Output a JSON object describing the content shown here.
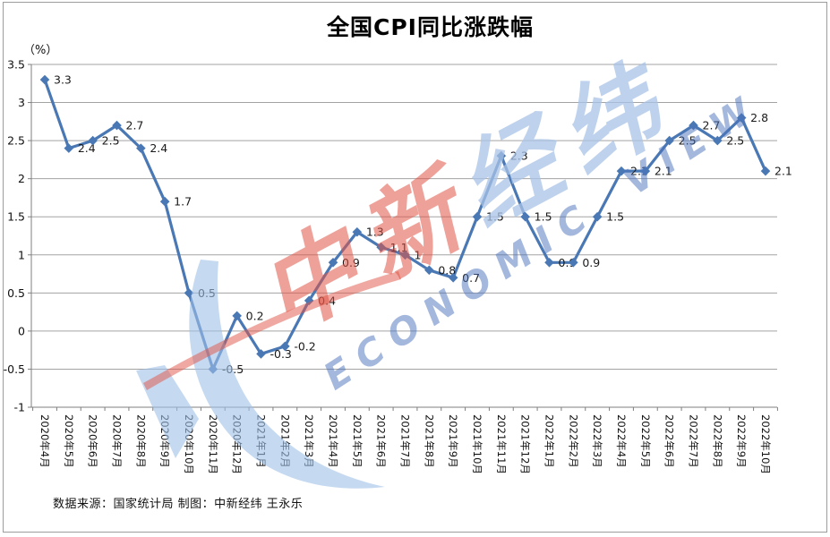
{
  "title": "全国CPI同比涨跌幅",
  "unit_label": "（%）",
  "source": "数据来源：国家统计局 制图：中新经纬 王永乐",
  "watermark": {
    "zh_red": "中新",
    "zh_blue": "经纬",
    "en": "ECONOMIC VIEW"
  },
  "colors": {
    "series": "#4A78B4",
    "gridline": "#A3A3A3",
    "axis": "#7F7F7F",
    "label": "#1A1A1A",
    "wm_red": "#E0544A",
    "wm_blue": "#A8C3E7"
  },
  "chart_data": {
    "type": "line",
    "title": "全国CPI同比涨跌幅",
    "ylabel": "（%）",
    "xlabel": "",
    "ylim": [
      -1,
      3.5
    ],
    "ytick_step": 0.5,
    "grid": true,
    "legend": "none",
    "marker": "diamond",
    "categories": [
      "2020年4月",
      "2020年5月",
      "2020年6月",
      "2020年7月",
      "2020年8月",
      "2020年9月",
      "2020年10月",
      "2020年11月",
      "2020年12月",
      "2021年1月",
      "2021年2月",
      "2021年3月",
      "2021年4月",
      "2021年5月",
      "2021年6月",
      "2021年7月",
      "2021年8月",
      "2021年9月",
      "2021年10月",
      "2021年11月",
      "2021年12月",
      "2022年1月",
      "2022年2月",
      "2022年3月",
      "2022年4月",
      "2022年5月",
      "2022年6月",
      "2022年7月",
      "2022年8月",
      "2022年9月",
      "2022年10月"
    ],
    "values": [
      3.3,
      2.4,
      2.5,
      2.7,
      2.4,
      1.7,
      0.5,
      -0.5,
      0.2,
      -0.3,
      -0.2,
      0.4,
      0.9,
      1.3,
      1.1,
      1.0,
      0.8,
      0.7,
      1.5,
      2.3,
      1.5,
      0.9,
      0.9,
      1.5,
      2.1,
      2.1,
      2.5,
      2.7,
      2.5,
      2.8,
      2.1
    ],
    "point_labels": [
      "3.3",
      "2.4",
      "2.5",
      "2.7",
      "2.4",
      "1.7",
      "0.5",
      "-0.5",
      "0.2",
      "-0.3",
      "-0.2",
      "0.4",
      "0.9",
      "1.3",
      "1.1",
      "1",
      "0.8",
      "0.7",
      "1.5",
      "2.3",
      "1.5",
      "0.9",
      "0.9",
      "1.5",
      "2.1",
      "2.1",
      "2.5",
      "2.7",
      "2.5",
      "2.8",
      "2.1"
    ]
  }
}
